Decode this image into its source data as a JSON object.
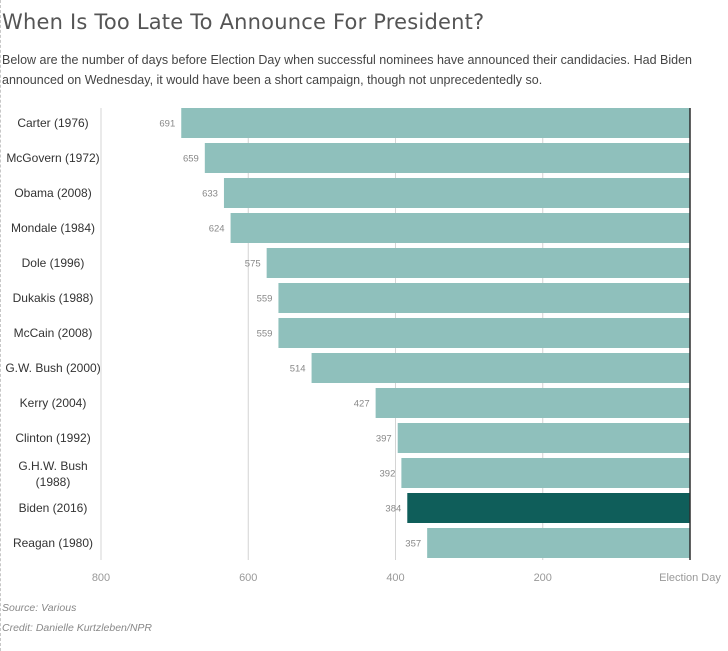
{
  "title": "When Is Too Late To Announce For President?",
  "subtitle": "Below are the number of days before Election Day when successful nominees have announced their candidacies. Had Biden announced on Wednesday, it would have been a short campaign, though not unprecedentedly so.",
  "source": "Source: Various",
  "credit": "Credit: Danielle Kurtzleben/NPR",
  "colors": {
    "bar": "#8fc0bc",
    "highlight": "#0f5e5a",
    "grid": "#d4d4d4",
    "axis": "#2e2e2e"
  },
  "chart_data": {
    "type": "bar",
    "orientation": "horizontal",
    "x_reversed": true,
    "xlim": [
      800,
      0
    ],
    "x_ticks": [
      800,
      600,
      400,
      200,
      0
    ],
    "x_tick_labels": [
      "800",
      "600",
      "400",
      "200",
      "Election Day"
    ],
    "grid": true,
    "highlight": "Biden (2016)",
    "categories": [
      "Carter (1976)",
      "McGovern (1972)",
      "Obama (2008)",
      "Mondale (1984)",
      "Dole (1996)",
      "Dukakis (1988)",
      "McCain (2008)",
      "G.W. Bush (2000)",
      "Kerry (2004)",
      "Clinton (1992)",
      "G.H.W. Bush (1988)",
      "Biden (2016)",
      "Reagan (1980)"
    ],
    "values": [
      691,
      659,
      633,
      624,
      575,
      559,
      559,
      514,
      427,
      397,
      392,
      384,
      357
    ]
  }
}
